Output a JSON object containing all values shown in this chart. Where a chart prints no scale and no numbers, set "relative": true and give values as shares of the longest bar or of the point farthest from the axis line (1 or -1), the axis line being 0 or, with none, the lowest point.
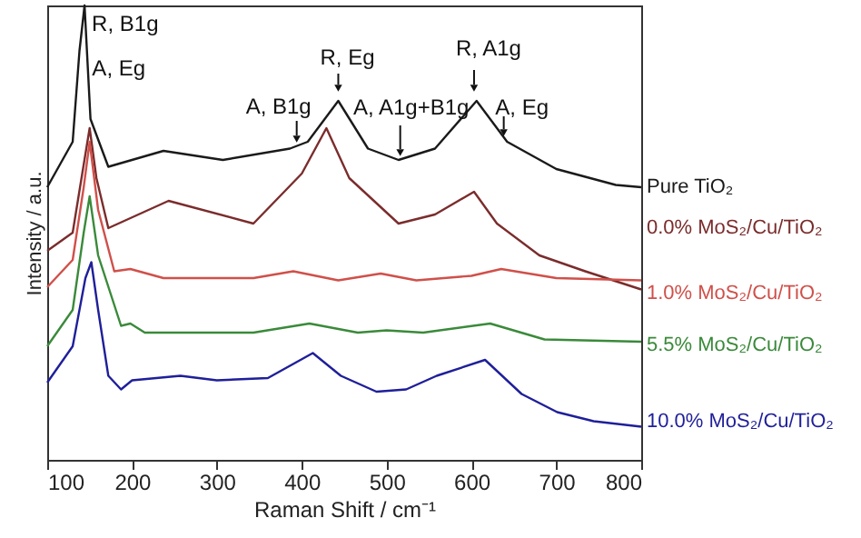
{
  "chart_data": {
    "type": "line",
    "relative": true,
    "xlabel": "Raman Shift / cm⁻¹",
    "ylabel": "Intensity / a.u.",
    "xlim": [
      100,
      800
    ],
    "xticks": [
      100,
      200,
      300,
      400,
      500,
      600,
      700,
      800
    ],
    "grid": false,
    "legend": false,
    "line_style": "solid",
    "marker": "none",
    "series": [
      {
        "name": "Pure TiO₂",
        "color": "#1a1a1a",
        "x": [
          100,
          130,
          138,
          144,
          151,
          172,
          237,
          307,
          386,
          407,
          443,
          478,
          514,
          557,
          606,
          642,
          700,
          770,
          800
        ],
        "values": [
          0.6,
          0.7,
          0.9,
          1.0,
          0.75,
          0.645,
          0.68,
          0.66,
          0.685,
          0.7,
          0.79,
          0.685,
          0.66,
          0.685,
          0.79,
          0.7,
          0.64,
          0.605,
          0.6
        ]
      },
      {
        "name": "0.0% MoS₂/Cu/TiO₂",
        "color": "#7b2c2c",
        "x": [
          100,
          130,
          143,
          150,
          158,
          172,
          243,
          343,
          400,
          429,
          456,
          514,
          557,
          603,
          630,
          680,
          734,
          800
        ],
        "values": [
          0.46,
          0.5,
          0.65,
          0.73,
          0.62,
          0.51,
          0.57,
          0.52,
          0.63,
          0.73,
          0.62,
          0.52,
          0.54,
          0.59,
          0.52,
          0.45,
          0.415,
          0.375
        ]
      },
      {
        "name": "1.0% MoS₂/Cu/TiO₂",
        "color": "#d0504a",
        "x": [
          100,
          130,
          143,
          150,
          160,
          179,
          198,
          237,
          343,
          390,
          443,
          493,
          535,
          600,
          635,
          700,
          800
        ],
        "values": [
          0.38,
          0.44,
          0.6,
          0.7,
          0.55,
          0.415,
          0.42,
          0.4,
          0.4,
          0.415,
          0.395,
          0.41,
          0.395,
          0.405,
          0.42,
          0.4,
          0.395
        ]
      },
      {
        "name": "5.5% MoS₂/Cu/TiO₂",
        "color": "#3a8a3a",
        "x": [
          100,
          130,
          143,
          150,
          160,
          187,
          198,
          215,
          343,
          409,
          466,
          500,
          543,
          622,
          686,
          800
        ],
        "values": [
          0.25,
          0.33,
          0.5,
          0.58,
          0.45,
          0.295,
          0.3,
          0.28,
          0.28,
          0.3,
          0.28,
          0.285,
          0.28,
          0.3,
          0.265,
          0.26
        ]
      },
      {
        "name": "10.0% MoS₂/Cu/TiO₂",
        "color": "#1f1f9a",
        "x": [
          100,
          130,
          145,
          152,
          160,
          172,
          187,
          200,
          257,
          300,
          360,
          413,
          446,
          488,
          523,
          559,
          616,
          659,
          701,
          744,
          800
        ],
        "values": [
          0.17,
          0.25,
          0.4,
          0.435,
          0.33,
          0.185,
          0.155,
          0.175,
          0.185,
          0.175,
          0.18,
          0.235,
          0.185,
          0.15,
          0.155,
          0.185,
          0.22,
          0.145,
          0.105,
          0.085,
          0.073
        ]
      }
    ],
    "annotations": [
      {
        "text": "R, B1g",
        "x": 144,
        "y": 1.0
      },
      {
        "text": "A, Eg",
        "x": 150,
        "y": 0.73
      },
      {
        "text": "A, B1g",
        "x": 394,
        "y": 0.69
      },
      {
        "text": "R, Eg",
        "x": 443,
        "y": 0.79
      },
      {
        "text": "A, A1g+B1g",
        "x": 516,
        "y": 0.66
      },
      {
        "text": "R, A1g",
        "x": 603,
        "y": 0.79
      },
      {
        "text": "A, Eg",
        "x": 638,
        "y": 0.7
      }
    ]
  }
}
